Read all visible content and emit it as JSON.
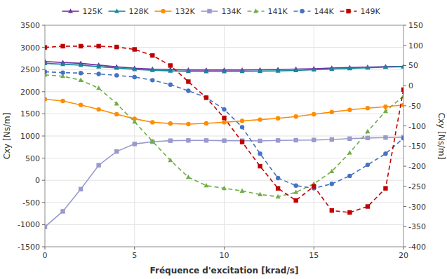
{
  "chart_data": {
    "type": "line",
    "xlabel": "Fréquence d'excitation [krad/s]",
    "ylabel": "Cxy [Ns/m]",
    "y2label": "Cxy [Ns/m]",
    "x": [
      0,
      1,
      2,
      3,
      4,
      5,
      6,
      7,
      8,
      9,
      10,
      11,
      12,
      13,
      14,
      15,
      16,
      17,
      18,
      19,
      20
    ],
    "xlim": [
      0,
      20
    ],
    "xticks": [
      0,
      5,
      10,
      15,
      20
    ],
    "ylim": [
      -1500,
      3500
    ],
    "yticks": [
      -1500,
      -1000,
      -500,
      0,
      500,
      1000,
      1500,
      2000,
      2500,
      3000,
      3500
    ],
    "y2lim": [
      -400,
      150
    ],
    "y2ticks": [
      -400,
      -350,
      -300,
      -250,
      -200,
      -150,
      -100,
      -50,
      0,
      50,
      100,
      150
    ],
    "grid": true,
    "legend": "top",
    "series": [
      {
        "name": "125K",
        "color": "#7030A0",
        "marker": "triangle",
        "line_style": "solid",
        "values": [
          2680,
          2660,
          2640,
          2600,
          2560,
          2530,
          2510,
          2500,
          2490,
          2490,
          2490,
          2490,
          2495,
          2500,
          2510,
          2520,
          2535,
          2545,
          2555,
          2565,
          2570
        ]
      },
      {
        "name": "128K",
        "color": "#17879C",
        "marker": "triangle",
        "line_style": "solid",
        "values": [
          2640,
          2620,
          2600,
          2565,
          2535,
          2505,
          2485,
          2470,
          2460,
          2455,
          2455,
          2460,
          2465,
          2470,
          2480,
          2495,
          2510,
          2525,
          2540,
          2555,
          2565
        ]
      },
      {
        "name": "132K",
        "color": "#FF8C00",
        "marker": "circle",
        "line_style": "solid",
        "values": [
          1830,
          1790,
          1700,
          1600,
          1490,
          1390,
          1310,
          1280,
          1270,
          1285,
          1310,
          1340,
          1370,
          1400,
          1440,
          1490,
          1540,
          1590,
          1630,
          1660,
          1700
        ]
      },
      {
        "name": "134K",
        "color": "#9999CC",
        "marker": "square",
        "line_style": "solid",
        "values": [
          -1050,
          -700,
          -200,
          340,
          650,
          820,
          870,
          895,
          900,
          900,
          895,
          895,
          890,
          900,
          905,
          910,
          920,
          940,
          955,
          965,
          975
        ]
      },
      {
        "name": "141K",
        "color": "#70AD47",
        "marker": "triangle",
        "line_style": "dashed",
        "values": [
          2380,
          2350,
          2260,
          2080,
          1730,
          1320,
          880,
          450,
          70,
          -120,
          -180,
          -240,
          -320,
          -370,
          -270,
          -80,
          200,
          620,
          1100,
          1560,
          1900
        ]
      },
      {
        "name": "144K",
        "color": "#4472C4",
        "marker": "circle",
        "line_style": "dashed",
        "values": [
          2450,
          2430,
          2420,
          2400,
          2370,
          2330,
          2260,
          2160,
          2020,
          1870,
          1600,
          1200,
          600,
          50,
          -120,
          -180,
          -80,
          100,
          350,
          600,
          950
        ]
      },
      {
        "name": "149K",
        "color": "#C00000",
        "marker": "square",
        "line_style": "dashed",
        "axis": "y2",
        "values": [
          95,
          98,
          98,
          98,
          96,
          90,
          75,
          50,
          10,
          -30,
          -80,
          -140,
          -200,
          -255,
          -285,
          -250,
          -310,
          -315,
          -300,
          -255,
          -10
        ]
      }
    ]
  }
}
